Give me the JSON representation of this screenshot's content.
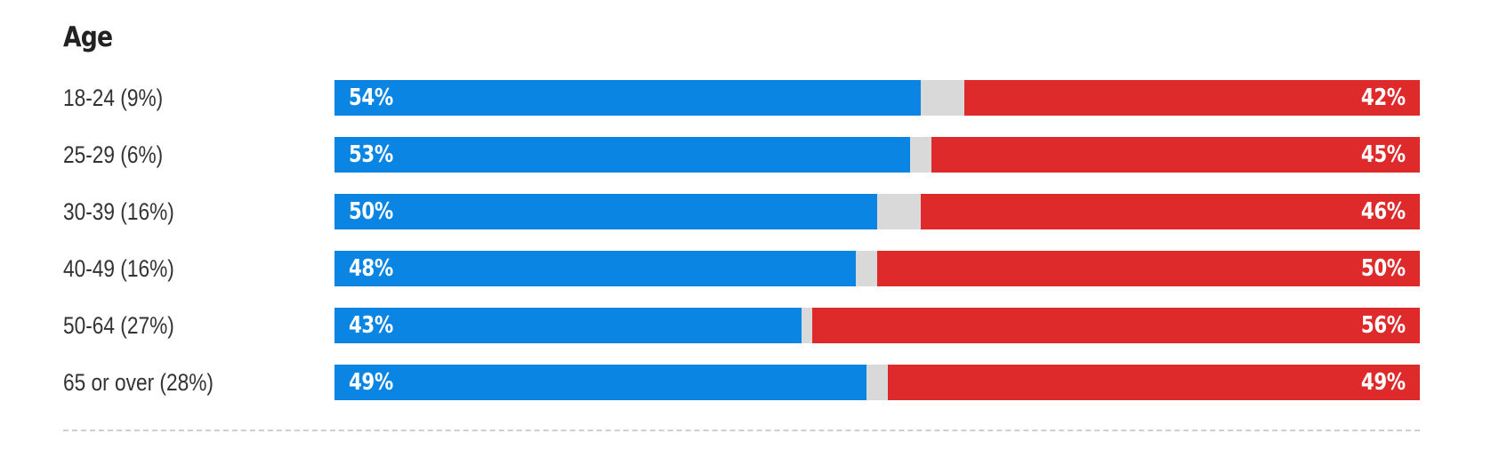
{
  "title": "Age",
  "colors": {
    "democrat": "#0a85e3",
    "republican": "#de2a2a",
    "other": "#d9d9d9"
  },
  "chart_data": {
    "type": "bar",
    "orientation": "horizontal",
    "stacked": true,
    "title": "Age",
    "categories": [
      "18-24 (9%)",
      "25-29 (6%)",
      "30-39 (16%)",
      "40-49 (16%)",
      "50-64 (27%)",
      "65 or over (28%)"
    ],
    "series": [
      {
        "values": [
          54,
          53,
          50,
          48,
          43,
          49
        ],
        "color": "#0a85e3"
      },
      {
        "values": [
          42,
          45,
          46,
          50,
          56,
          49
        ],
        "color": "#de2a2a"
      }
    ],
    "xlim": [
      0,
      100
    ],
    "legend": "none",
    "grid": false
  }
}
